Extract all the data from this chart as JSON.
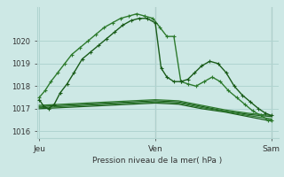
{
  "title": "Pression niveau de la mer( hPa )",
  "bg_color": "#cde8e5",
  "grid_color": "#b0d4d0",
  "line_color_dark": "#1a5c1a",
  "line_color_mid": "#2d7a2d",
  "ylim": [
    1015.7,
    1021.5
  ],
  "yticks": [
    1016,
    1017,
    1018,
    1019,
    1020
  ],
  "xtick_labels": [
    "Jeu",
    "",
    "Ven",
    "",
    "Sam"
  ],
  "xtick_positions": [
    0,
    0.5,
    1.0,
    1.5,
    2.0
  ],
  "num_x_days": 2,
  "line1_x": [
    0.0,
    0.04,
    0.08,
    0.13,
    0.18,
    0.24,
    0.3,
    0.37,
    0.44,
    0.51,
    0.58,
    0.65,
    0.72,
    0.79,
    0.86,
    0.93,
    1.0,
    1.05,
    1.1,
    1.16,
    1.22,
    1.28,
    1.34,
    1.4,
    1.47,
    1.54,
    1.61,
    1.68,
    1.75,
    1.82,
    1.89,
    1.95,
    2.0
  ],
  "line1_y": [
    1017.4,
    1017.1,
    1017.0,
    1017.2,
    1017.7,
    1018.1,
    1018.6,
    1019.2,
    1019.5,
    1019.8,
    1020.1,
    1020.4,
    1020.7,
    1020.9,
    1021.0,
    1021.0,
    1020.8,
    1018.8,
    1018.4,
    1018.2,
    1018.2,
    1018.3,
    1018.6,
    1018.9,
    1019.1,
    1019.0,
    1018.6,
    1018.0,
    1017.6,
    1017.3,
    1017.0,
    1016.8,
    1016.7
  ],
  "line2_x": [
    0.0,
    0.05,
    0.1,
    0.16,
    0.22,
    0.28,
    0.35,
    0.42,
    0.49,
    0.56,
    0.63,
    0.7,
    0.77,
    0.84,
    0.91,
    0.98,
    1.04,
    1.1,
    1.16,
    1.22,
    1.28,
    1.35,
    1.42,
    1.49,
    1.56,
    1.63,
    1.7,
    1.77,
    1.84,
    1.91,
    1.97,
    2.0
  ],
  "line2_y": [
    1017.5,
    1017.8,
    1018.2,
    1018.6,
    1019.0,
    1019.4,
    1019.7,
    1020.0,
    1020.3,
    1020.6,
    1020.8,
    1021.0,
    1021.1,
    1021.2,
    1021.1,
    1021.0,
    1020.6,
    1020.2,
    1020.2,
    1018.2,
    1018.1,
    1018.0,
    1018.2,
    1018.4,
    1018.2,
    1017.8,
    1017.5,
    1017.2,
    1016.9,
    1016.7,
    1016.5,
    1016.5
  ],
  "line3_x": [
    0.0,
    0.2,
    0.4,
    0.6,
    0.8,
    1.0,
    1.2,
    1.4,
    1.6,
    1.8,
    2.0
  ],
  "line3_y": [
    1017.1,
    1017.15,
    1017.2,
    1017.25,
    1017.3,
    1017.35,
    1017.3,
    1017.1,
    1016.9,
    1016.75,
    1016.65
  ],
  "line4_x": [
    0.0,
    0.2,
    0.4,
    0.6,
    0.8,
    1.0,
    1.2,
    1.4,
    1.6,
    1.8,
    2.0
  ],
  "line4_y": [
    1017.0,
    1017.05,
    1017.1,
    1017.15,
    1017.2,
    1017.25,
    1017.2,
    1017.0,
    1016.85,
    1016.65,
    1016.45
  ],
  "line5_x": [
    0.0,
    0.2,
    0.4,
    0.6,
    0.8,
    1.0,
    1.2,
    1.4,
    1.6,
    1.8,
    2.0
  ],
  "line5_y": [
    1017.05,
    1017.1,
    1017.15,
    1017.2,
    1017.25,
    1017.3,
    1017.25,
    1017.05,
    1016.88,
    1016.7,
    1016.55
  ],
  "line6_x": [
    0.0,
    0.2,
    0.4,
    0.6,
    0.8,
    1.0,
    1.2,
    1.4,
    1.6,
    1.8,
    2.0
  ],
  "line6_y": [
    1017.15,
    1017.2,
    1017.25,
    1017.3,
    1017.35,
    1017.4,
    1017.35,
    1017.15,
    1016.95,
    1016.8,
    1016.7
  ]
}
